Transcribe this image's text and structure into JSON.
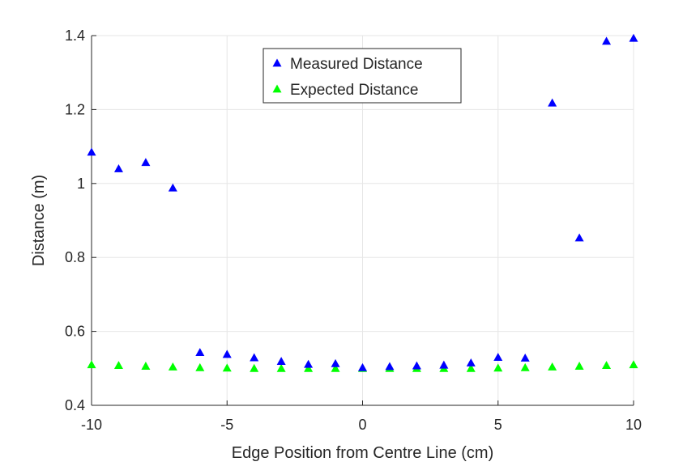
{
  "chart_data": {
    "type": "scatter",
    "xlabel": "Edge Position from Centre Line (cm)",
    "ylabel": "Distance (m)",
    "xlim": [
      -10,
      10
    ],
    "ylim": [
      0.4,
      1.4
    ],
    "xticks": [
      -10,
      -5,
      0,
      5,
      10
    ],
    "yticks": [
      0.4,
      0.6,
      0.8,
      1,
      1.2,
      1.4
    ],
    "xtick_labels": [
      "-10",
      "-5",
      "0",
      "5",
      "10"
    ],
    "ytick_labels": [
      "0.4",
      "0.6",
      "0.8",
      "1",
      "1.2",
      "1.4"
    ],
    "grid": true,
    "legend_position": "top-center",
    "x": [
      -10,
      -9,
      -8,
      -7,
      -6,
      -5,
      -4,
      -3,
      -2,
      -1,
      0,
      1,
      2,
      3,
      4,
      5,
      6,
      7,
      8,
      9,
      10
    ],
    "series": [
      {
        "name": "Measured Distance",
        "color": "#0000ff",
        "marker": "triangle",
        "values": [
          1.085,
          1.04,
          1.057,
          0.988,
          0.543,
          0.538,
          0.529,
          0.519,
          0.511,
          0.513,
          0.502,
          0.505,
          0.507,
          0.509,
          0.515,
          0.53,
          0.528,
          1.218,
          0.853,
          1.385,
          1.393
        ]
      },
      {
        "name": "Expected Distance",
        "color": "#00ff00",
        "marker": "triangle",
        "values": [
          0.51,
          0.508,
          0.506,
          0.504,
          0.502,
          0.501,
          0.5,
          0.5,
          0.5,
          0.5,
          0.5,
          0.5,
          0.5,
          0.5,
          0.5,
          0.501,
          0.502,
          0.504,
          0.506,
          0.508,
          0.51
        ]
      }
    ]
  }
}
